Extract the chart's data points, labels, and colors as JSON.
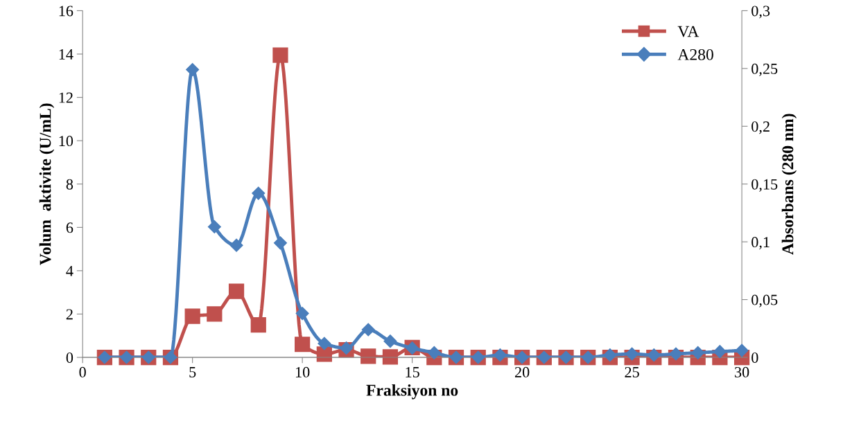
{
  "chart_data": {
    "type": "line",
    "xlabel": "Fraksiyon no",
    "ylabel": "Volum  aktivite (U/mL)",
    "y2label": "Absorbans (280 nm)",
    "x": [
      1,
      2,
      3,
      4,
      5,
      6,
      7,
      8,
      9,
      10,
      11,
      12,
      13,
      14,
      15,
      16,
      17,
      18,
      19,
      20,
      21,
      22,
      23,
      24,
      25,
      26,
      27,
      28,
      29,
      30
    ],
    "series": [
      {
        "name": "VA",
        "color": "#c0504d",
        "marker": "square",
        "values": [
          0,
          0,
          0,
          0,
          1.9,
          2.0,
          3.05,
          1.5,
          13.95,
          0.6,
          0.15,
          0.35,
          0.05,
          0.02,
          0.45,
          0,
          0,
          0,
          0,
          0,
          0,
          0,
          0,
          0,
          0,
          0,
          0,
          0,
          0,
          0
        ]
      },
      {
        "name": "A280",
        "color": "#4a7ebb",
        "marker": "diamond",
        "axis": "y2",
        "values": [
          0,
          0,
          0,
          0,
          0.249,
          0.113,
          0.097,
          0.142,
          0.099,
          0.038,
          0.012,
          0.008,
          0.024,
          0.014,
          0.008,
          0.004,
          0,
          0,
          0.002,
          0,
          0,
          0,
          0,
          0.002,
          0.003,
          0.002,
          0.003,
          0.004,
          0.005,
          0.006
        ]
      }
    ],
    "xlim": [
      0,
      30
    ],
    "xticks": [
      0,
      5,
      10,
      15,
      20,
      25,
      30
    ],
    "ylim": [
      0,
      16
    ],
    "yticks": [
      0,
      2,
      4,
      6,
      8,
      10,
      12,
      14,
      16
    ],
    "y2lim": [
      0,
      0.3
    ],
    "y2ticks": [
      {
        "value": 0,
        "label": "0"
      },
      {
        "value": 0.05,
        "label": "0,05"
      },
      {
        "value": 0.1,
        "label": "0,1"
      },
      {
        "value": 0.15,
        "label": "0,15"
      },
      {
        "value": 0.2,
        "label": "0,2"
      },
      {
        "value": 0.25,
        "label": "0,25"
      },
      {
        "value": 0.3,
        "label": "0,3"
      }
    ],
    "legend": "top right",
    "grid": false,
    "line_style": "solid"
  }
}
